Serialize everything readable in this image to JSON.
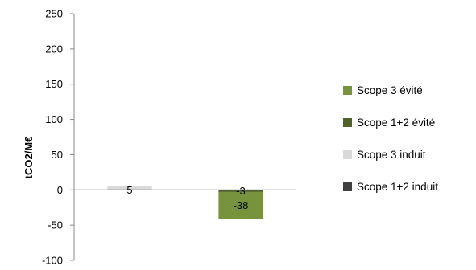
{
  "chart_data": {
    "type": "bar",
    "title": "",
    "xlabel": "",
    "ylabel": "tCO2/M€",
    "ylim": [
      -100,
      250
    ],
    "yticks": [
      250,
      200,
      150,
      100,
      50,
      0,
      -50,
      -100
    ],
    "ytick_labels": [
      "250",
      "200",
      "150",
      "100",
      "50",
      "0",
      "-50",
      "-100"
    ],
    "grid": false,
    "legend_position": "right",
    "stacked": true,
    "categories": [
      "",
      ""
    ],
    "series": [
      {
        "name": "Scope 1+2 induit",
        "color": "#404040",
        "values": [
          0,
          0
        ],
        "labels": [
          "",
          ""
        ]
      },
      {
        "name": "Scope 3 induit",
        "color": "#d9d9d9",
        "values": [
          5,
          0
        ],
        "labels": [
          "5",
          ""
        ]
      },
      {
        "name": "Scope 1+2 évité",
        "color": "#4f6228",
        "values": [
          0,
          -3
        ],
        "labels": [
          "",
          "-3"
        ]
      },
      {
        "name": "Scope 3 évité",
        "color": "#77933c",
        "values": [
          0,
          -38
        ],
        "labels": [
          "",
          "-38"
        ]
      }
    ],
    "legend_order": [
      "Scope 3 évité",
      "Scope 1+2 évité",
      "Scope 3 induit",
      "Scope 1+2 induit"
    ]
  }
}
